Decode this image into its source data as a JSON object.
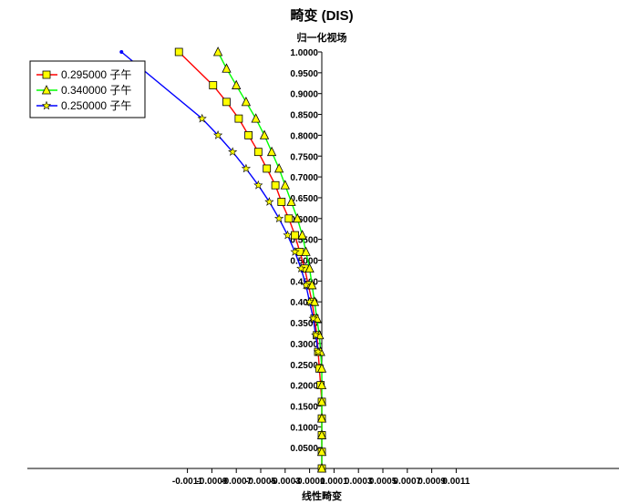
{
  "chart_data": {
    "type": "line",
    "title": "畸变 (DIS)",
    "ylabel": "归一化视场",
    "xlabel": "线性畸变",
    "xlim": [
      -0.0012,
      0.0012
    ],
    "ylim": [
      0,
      1.0
    ],
    "x_ticks": [
      "-0.0011",
      "-0.0009",
      "-0.0007",
      "-0.0005",
      "-0.0003",
      "-0.0001",
      "0.0001",
      "0.0003",
      "0.0005",
      "0.0007",
      "0.0009",
      "0.0011"
    ],
    "x_tick_values": [
      -0.0011,
      -0.0009,
      -0.0007,
      -0.0005,
      -0.0003,
      -0.0001,
      0.0001,
      0.0003,
      0.0005,
      0.0007,
      0.0009,
      0.0011
    ],
    "y_ticks": [
      "0.0500",
      "0.1000",
      "0.1500",
      "0.2000",
      "0.2500",
      "0.3000",
      "0.3500",
      "0.4000",
      "0.4500",
      "0.5000",
      "0.5500",
      "0.6000",
      "0.6500",
      "0.7000",
      "0.7500",
      "0.8000",
      "0.8500",
      "0.9000",
      "0.9500",
      "1.0000"
    ],
    "y_tick_values": [
      0.05,
      0.1,
      0.15,
      0.2,
      0.25,
      0.3,
      0.35,
      0.4,
      0.45,
      0.5,
      0.55,
      0.6,
      0.65,
      0.7,
      0.75,
      0.8,
      0.85,
      0.9,
      0.95,
      1.0
    ],
    "legend_position": "top-left",
    "series": [
      {
        "name": "0.295000 子午",
        "color": "#ff0000",
        "marker": "square",
        "marker_fill": "#ffff00",
        "y": [
          0,
          0.04,
          0.08,
          0.12,
          0.16,
          0.2,
          0.24,
          0.28,
          0.32,
          0.36,
          0.4,
          0.44,
          0.48,
          0.52,
          0.56,
          0.6,
          0.64,
          0.68,
          0.72,
          0.76,
          0.8,
          0.84,
          0.88,
          0.92,
          1.0
        ],
        "x": [
          0,
          0,
          0,
          0,
          0,
          -1e-05,
          -2e-05,
          -3e-05,
          -4e-05,
          -6e-05,
          -8e-05,
          -0.00011,
          -0.00014,
          -0.00018,
          -0.00022,
          -0.00027,
          -0.00033,
          -0.00038,
          -0.00045,
          -0.00052,
          -0.0006,
          -0.00068,
          -0.00078,
          -0.00089,
          -0.00117
        ]
      },
      {
        "name": "0.340000 子午",
        "color": "#00ff00",
        "marker": "triangle",
        "marker_fill": "#ffff00",
        "y": [
          0,
          0.04,
          0.08,
          0.12,
          0.16,
          0.2,
          0.24,
          0.28,
          0.32,
          0.36,
          0.4,
          0.44,
          0.48,
          0.52,
          0.56,
          0.6,
          0.64,
          0.68,
          0.72,
          0.76,
          0.8,
          0.84,
          0.88,
          0.92,
          0.96,
          1.0
        ],
        "x": [
          0,
          0,
          0,
          0,
          0,
          0,
          0,
          -1e-05,
          -2e-05,
          -4e-05,
          -6e-05,
          -8e-05,
          -0.0001,
          -0.00013,
          -0.00016,
          -0.0002,
          -0.00025,
          -0.0003,
          -0.00035,
          -0.00041,
          -0.00047,
          -0.00054,
          -0.00062,
          -0.0007,
          -0.00078,
          -0.00085
        ]
      },
      {
        "name": "0.250000 子午",
        "color": "#0000ff",
        "marker": "star",
        "marker_fill": "#ffff00",
        "y": [
          0.28,
          0.32,
          0.36,
          0.4,
          0.44,
          0.48,
          0.52,
          0.56,
          0.6,
          0.64,
          0.68,
          0.72,
          0.76,
          0.8,
          0.84,
          1.0
        ],
        "x": [
          -3e-05,
          -5e-05,
          -7e-05,
          -0.0001,
          -0.00013,
          -0.00017,
          -0.00022,
          -0.00028,
          -0.00035,
          -0.00043,
          -0.00052,
          -0.00062,
          -0.00073,
          -0.00085,
          -0.00098,
          -0.00164
        ]
      }
    ]
  }
}
